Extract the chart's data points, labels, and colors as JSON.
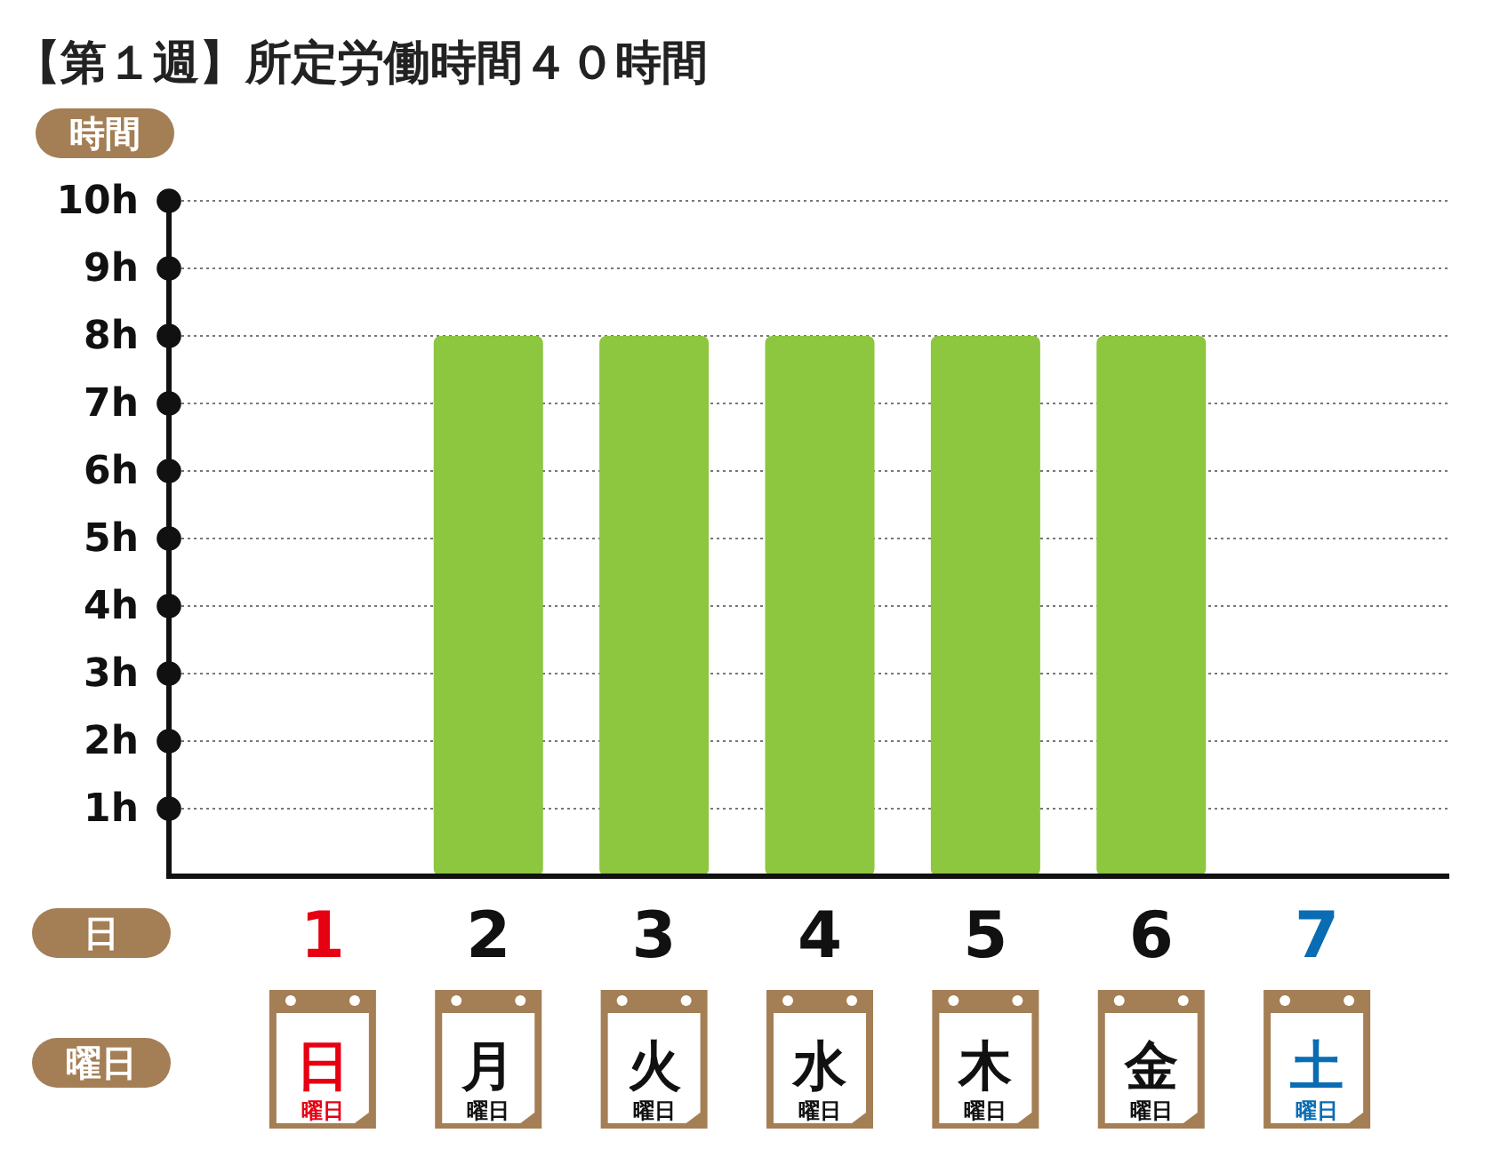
{
  "chart_data": {
    "type": "bar",
    "title": "【第１週】所定労働時間４０時間",
    "ylabel": "時間",
    "xlabel": "日",
    "categories": [
      "1",
      "2",
      "3",
      "4",
      "5",
      "6",
      "7"
    ],
    "values": [
      0,
      8,
      8,
      8,
      8,
      8,
      0
    ],
    "color": "#8dc63f",
    "ylim": [
      0,
      10
    ],
    "yticks": [
      {
        "value": 1,
        "label": "1h"
      },
      {
        "value": 2,
        "label": "2h"
      },
      {
        "value": 3,
        "label": "3h"
      },
      {
        "value": 4,
        "label": "4h"
      },
      {
        "value": 5,
        "label": "5h"
      },
      {
        "value": 6,
        "label": "6h"
      },
      {
        "value": 7,
        "label": "7h"
      },
      {
        "value": 8,
        "label": "8h"
      },
      {
        "value": 9,
        "label": "9h"
      },
      {
        "value": 10,
        "label": "10h"
      }
    ],
    "grid": "y",
    "marker": "circle",
    "annotations": [
      "曜日",
      "日",
      "月",
      "火",
      "水",
      "木",
      "金",
      "土",
      "曜日",
      "曜日",
      "曜日",
      "曜日",
      "曜日",
      "曜日",
      "曜日"
    ]
  }
}
